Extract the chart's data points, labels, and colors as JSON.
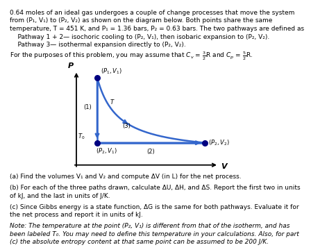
{
  "curve_color": "#3366cc",
  "point_color": "#000080",
  "bg_color": "#ffffff",
  "fs_text": 6.5,
  "fs_diagram": 6.0,
  "top_lines": [
    "0.64 moles of an ideal gas undergoes a couple of change processes that move the system",
    "from (P₁, V₁) to (P₂, V₂) as shown on the diagram below. Both points share the same",
    "temperature, T = 451 K, and P₁ = 1.36 bars, P₂ = 0.63 bars. The two pathways are defined as",
    "    Pathway 1 + 2— isochoric cooling to (P₂, V₁), then isobaric expansion to (P₂, V₂).",
    "    Pathway 3— isothermal expansion directly to (P₂, V₂)."
  ],
  "bottom_lines": [
    "(a) Find the volumes V₁ and V₂ and compute ΔV (in L) for the net process.",
    "",
    "(b) For each of the three paths drawn, calculate ΔU, ΔH, and ΔS. Report the first two in units",
    "of kJ, and the last in units of J/K.",
    "",
    "(c) Since Gibbs energy is a state function, ΔG is the same for both pathways. Evaluate it for",
    "the net process and report it in units of kJ.",
    "",
    "Note: The temperature at the point (P₂, V₁) is different from that of the isotherm, and has",
    "been labeled T₀. You may need to define this temperature in your calculations. Also, for part",
    "(c) the absolute entropy content at that same point can be assumed to be 200 J/K."
  ]
}
